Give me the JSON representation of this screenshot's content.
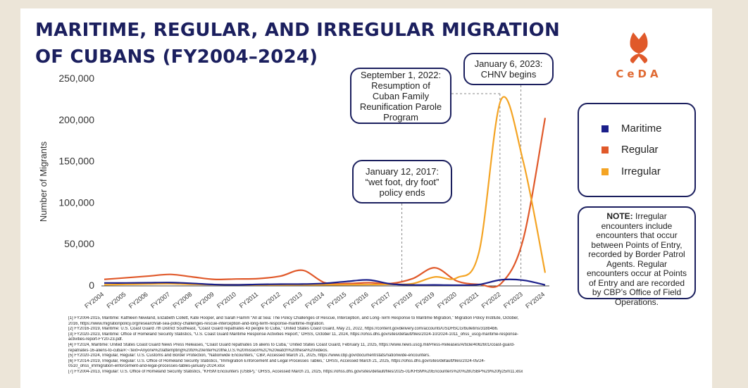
{
  "title": "MARITIME, REGULAR, AND IRREGULAR MIGRATION OF CUBANS (FY2004–2024)",
  "logo_text": "CeDA",
  "colors": {
    "navy": "#1b1f5e",
    "maritime": "#1b1f8a",
    "regular": "#e0592a",
    "irregular": "#f4a424"
  },
  "chart_data": {
    "type": "line",
    "title": "MARITIME, REGULAR, AND IRREGULAR MIGRATION OF CUBANS (FY2004–2024)",
    "xlabel": "",
    "ylabel": "Number of Migrants",
    "ylim": [
      0,
      250000
    ],
    "yticks": [
      0,
      50000,
      100000,
      150000,
      200000,
      250000
    ],
    "ytick_labels": [
      "0",
      "50,000",
      "100,000",
      "150,000",
      "200,000",
      "250,000"
    ],
    "categories": [
      "FY2004",
      "FY2005",
      "FY2006",
      "FY2007",
      "FY2008",
      "FY2009",
      "FY2010",
      "FY2011",
      "FY2012",
      "FY2013",
      "FY2014",
      "FY2015",
      "FY2016",
      "FY2017",
      "FY2018",
      "FY2019",
      "FY2020",
      "FY2021",
      "FY2022",
      "FY2023",
      "FY2024"
    ],
    "series": [
      {
        "name": "Maritime",
        "color": "#1b1f8a",
        "values": [
          2700,
          2700,
          3000,
          3200,
          2200,
          800,
          400,
          1000,
          1300,
          1400,
          2200,
          4500,
          6300,
          1500,
          300,
          300,
          50,
          800,
          6500,
          6000,
          300
        ]
      },
      {
        "name": "Regular",
        "color": "#e0592a",
        "values": [
          7000,
          9000,
          11000,
          13000,
          10000,
          7000,
          7500,
          8000,
          11000,
          18000,
          3000,
          2000,
          3000,
          2000,
          8000,
          21000,
          5000,
          1000,
          2000,
          55000,
          202000
        ]
      },
      {
        "name": "Irregular",
        "color": "#f4a424",
        "values": [
          500,
          1000,
          1500,
          1800,
          1000,
          700,
          500,
          400,
          300,
          400,
          500,
          600,
          700,
          1000,
          2000,
          10000,
          9000,
          40000,
          224000,
          150000,
          15000
        ]
      }
    ],
    "annotations": [
      {
        "text": "January 12, 2017: “wet foot, dry foot” policy ends",
        "at": "FY2017"
      },
      {
        "text": "September 1, 2022: Resumption of Cuban Family Reunification Parole Program",
        "at": "FY2022"
      },
      {
        "text": "January 6, 2023: CHNV begins",
        "at": "FY2023"
      }
    ],
    "legend": {
      "position": "right",
      "entries": [
        "Maritime",
        "Regular",
        "Irregular"
      ]
    }
  },
  "note": {
    "label": "NOTE:",
    "text": "Irregular encounters include encounters that occur between Points of Entry, recorded by Border Patrol Agents. Regular encounters occur at Points of Entry and are recorded by CBP’s Office of Field Operations."
  },
  "footnotes": [
    "[1] FY2004-2015, Maritime: Kathleen Newland, Elizabeth Collett, Kate Hooper, and Sarah Flamm “All at Sea: The Policy Challenges of Rescue, Interception, and Long-Term Response to Maritime Migration,” Migration Policy Institute, October,",
    "2016, https://www.migrationpolicy.org/research/all-sea-policy-challenges-rescue-interception-and-long-term-response-maritime-migration.",
    "[2] FY2016-2019, Maritime: U.S. Coast Guard 7th District Southeast, “Coast Guard repatriates 43 people to Cuba,” United States Coast Guard, May 21, 2022, https://content.govdelivery.com/accounts/USDHSCG/bulletins/318b4b6.",
    "[3] FY2020-2023, Maritime: Office of Homeland Security Statistics, “U.S. Coast Guard Maritime Response Activities Report,” OHSS, October 11, 2024, https://ohss.dhs.gov/sites/default/files/2024-10/2024-1011_ohss_uscg-maritime-response-",
    "activities-report-FY20-23.pdf.",
    "[4] FY2024, Maritime: United States Coast Guard News Press Releases, “Coast Guard repatriates 16 aliens to Cuba,” United States Coast Guard, February 11, 2025, https://www.news.uscg.mil/Press-Releases/Article/4062601/coast-guard-",
    "repatriates-16-aliens-to-cuba/#:~:text=Anyone%20attempting%20to%20enter%20the,U.S.%20mission%2C%20watch%20these%20videos.",
    "[5] FY2020-2024, Irregular, Regular: U.S. Customs and Border Protection, “Nationwide Encounters,” CBP, Accessed March 21, 2025, https://www.cbp.gov/document/stats/nationwide-encounters.",
    "[6] FY2014-2019, Irregular, Regular: U.S. Office of Homeland Security Statistics, “Immigration Enforcement and Legal Processes Tables,” OHSS, Accessed March 21, 2025, https://ohss.dhs.gov/sites/default/files/2024-05/24-",
    "0510_ohss_immigration-enforcement-and-legal-processes-tables-january-2024.xlsx",
    "[7] FY2004-2013, Irregular: U.S. Office of Homeland Security Statistics, “KHSM Encounters (USBP),” OHSS, Accessed March 21, 2025, https://ohss.dhs.gov/sites/default/files/2025-01/KHSM%20Encounters%20%28USBP%29%20fy25m11.xlsx"
  ]
}
